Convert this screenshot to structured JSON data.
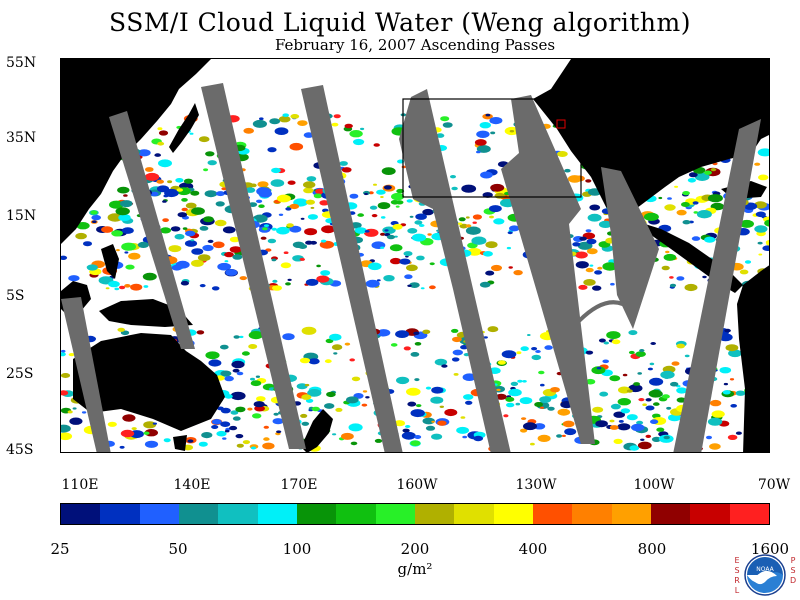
{
  "title": "SSM/I Cloud Liquid Water (Weng algorithm)",
  "subtitle": "February 16, 2007  Ascending Passes",
  "map": {
    "lat_labels": [
      "55N",
      "35N",
      "15N",
      "5S",
      "25S",
      "45S"
    ],
    "lon_labels": [
      "110E",
      "140E",
      "170E",
      "160W",
      "130W",
      "100W",
      "70W"
    ],
    "colors": {
      "land": "#000000",
      "missing_swath": "#6b6b6b",
      "clear_sky": "#ffffff"
    }
  },
  "colorbar": {
    "colors": [
      "#00107a",
      "#0030c0",
      "#2060ff",
      "#109090",
      "#10c0c0",
      "#00f0f8",
      "#089408",
      "#10c010",
      "#28f028",
      "#b0b000",
      "#e0e000",
      "#ffff00",
      "#ff5000",
      "#ff8000",
      "#ffa000",
      "#900000",
      "#c80000",
      "#ff2020"
    ],
    "tick_labels": [
      "25",
      "50",
      "100",
      "200",
      "400",
      "800",
      "1600"
    ],
    "units": "g/m²"
  },
  "logo": {
    "name": "NOAA",
    "side_left": "ESRL",
    "side_right": "PSD"
  }
}
